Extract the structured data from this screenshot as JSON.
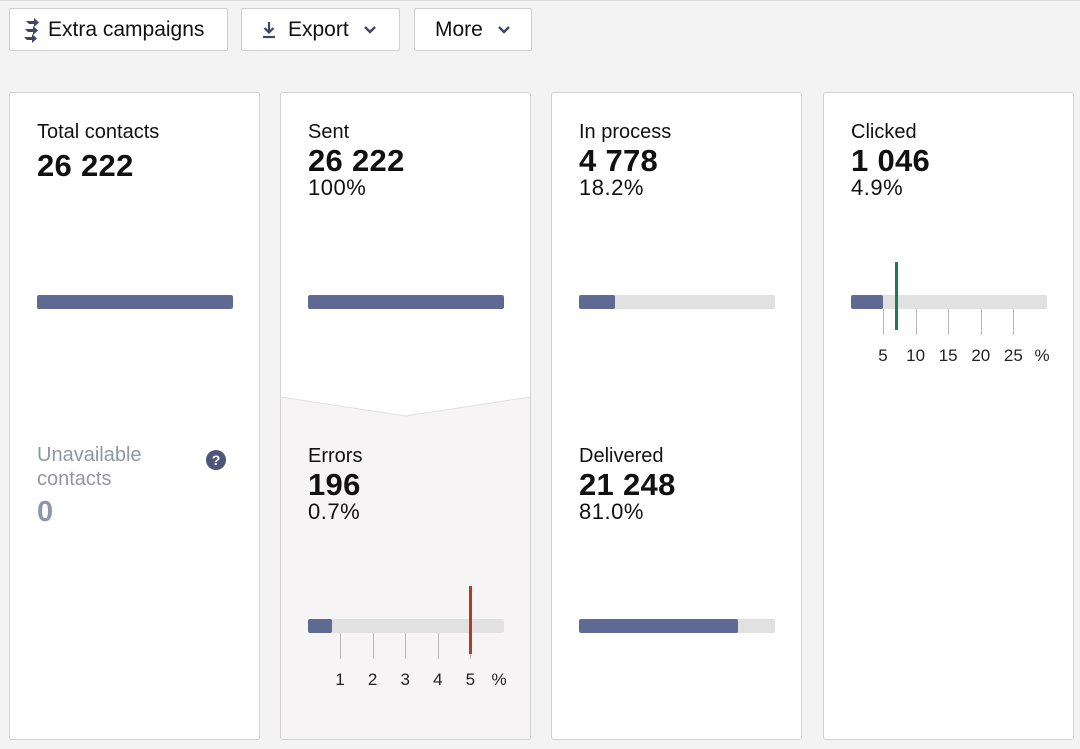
{
  "toolbar": {
    "extra_campaigns": "Extra campaigns",
    "export": "Export",
    "more": "More"
  },
  "icons": {
    "extra_campaigns": "extra-campaigns-arrows-icon",
    "export": "download-icon",
    "dropdown": "chevron-down-icon",
    "help": "question-circle-icon"
  },
  "colors": {
    "bar_fill": "#5e6a92",
    "bar_track": "#e1e1e1",
    "error_marker": "#b53a2a",
    "clicked_marker": "#1f7a55",
    "muted_text": "#8e96a8",
    "errors_panel_bg": "#f6f4f4"
  },
  "total": {
    "label": "Total contacts",
    "value": "26 222",
    "bar_fraction": 1.0
  },
  "unavailable": {
    "label": "Unavailable contacts",
    "value": "0",
    "help_glyph": "?"
  },
  "sent": {
    "label": "Sent",
    "value": "26 222",
    "percent": "100%",
    "bar_fraction": 1.0
  },
  "errors": {
    "label": "Errors",
    "value": "196",
    "percent": "0.7%",
    "bar_fraction": 0.123,
    "marker_value": 5,
    "scale_ticks": [
      "1",
      "2",
      "3",
      "4",
      "5"
    ],
    "scale_unit": "%"
  },
  "in_process": {
    "label": "In process",
    "value": "4 778",
    "percent": "18.2%",
    "bar_fraction": 0.182
  },
  "delivered": {
    "label": "Delivered",
    "value": "21 248",
    "percent": "81.0%",
    "bar_fraction": 0.81
  },
  "clicked": {
    "label": "Clicked",
    "value": "1 046",
    "percent": "4.9%",
    "bar_fraction": 0.163,
    "marker_value": 7,
    "scale_ticks": [
      "5",
      "10",
      "15",
      "20",
      "25"
    ],
    "scale_unit": "%"
  }
}
